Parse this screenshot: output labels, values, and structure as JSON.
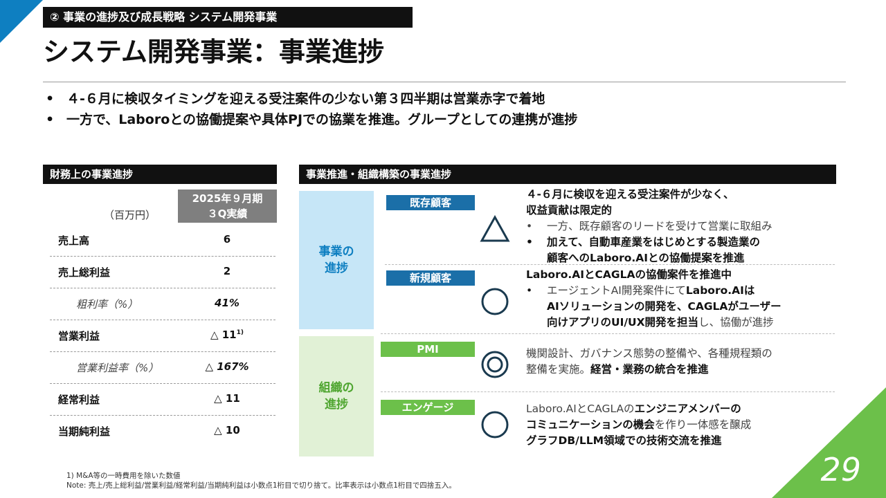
{
  "header": {
    "section": "② 事業の進捗及び成長戦略 システム開発事業",
    "title": "システム開発事業：事業進捗"
  },
  "summary_bullets": [
    "４-６月に検収タイミングを迎える受注案件の少ない第３四半期は営業赤字で着地",
    "一方で、Laboroとの協働提案や具体PJでの協業を推進。グループとしての連携が進捗"
  ],
  "financial": {
    "header": "財務上の事業進捗",
    "unit": "（百万円）",
    "column_header_line1": "2025年９月期",
    "column_header_line2": "３Q実績",
    "rows": [
      {
        "label": "売上高",
        "value": "6"
      },
      {
        "label": "売上総利益",
        "value": "2"
      },
      {
        "label": "粗利率（%）",
        "value": "41%"
      },
      {
        "label": "営業利益",
        "value": "△ 11",
        "note": "1)"
      },
      {
        "label": "営業利益率（%）",
        "value": "△ 167%"
      },
      {
        "label": "経常利益",
        "value": "△ 11"
      },
      {
        "label": "当期純利益",
        "value": "△ 10"
      }
    ]
  },
  "business": {
    "header": "事業推進・組織構築の事業進捗",
    "band1_line1": "事業の",
    "band1_line2": "進捗",
    "band2_line1": "組織の",
    "band2_line2": "進捗",
    "items": [
      {
        "tag": "既存顧客",
        "symbol": "triangle",
        "lines": [
          "４-６月に検収を迎える受注案件が少なく、",
          "収益貢献は限定的",
          "一方、既存顧客のリードを受けて営業に取組み",
          "加えて、自動車産業をはじめとする製造業の",
          "顧客へのLaboro.AIとの協働提案を推進"
        ]
      },
      {
        "tag": "新規顧客",
        "symbol": "circle",
        "lines": [
          "Laboro.AIとCAGLAの協働案件を推進中",
          "エージェントAI開発案件にて",
          "Laboro.AIは",
          "AIソリューションの開発を、CAGLAがユーザー",
          "向けアプリのUI/UX開発を担当",
          "し、協働が進捗"
        ]
      },
      {
        "tag": "PMI",
        "symbol": "double-circle",
        "lines": [
          "機関設計、ガバナンス態勢の整備や、各種規程類の",
          "整備を実施。",
          "経営・業務の統合を推進"
        ]
      },
      {
        "tag": "エンゲージ",
        "symbol": "circle",
        "lines": [
          "Laboro.AIとCAGLAの",
          "エンジニアメンバーの",
          "コミュニケーションの機会",
          "を作り一体感を醸成",
          "グラフDB/LLM領域での技術交流を推進"
        ]
      }
    ]
  },
  "bullet_char": "•",
  "notes": [
    "1) M&A等の一時費用を除いた数値",
    "Note: 売上/売上総利益/営業利益/経常利益/当期純利益は小数点1桁目で切り捨て。比率表示は小数点1桁目で四捨五入。"
  ],
  "page_number": "29",
  "colors": {
    "accent_blue": "#0e7fc1",
    "accent_green": "#6cc04a",
    "band_blue": "#c6e6f7",
    "band_green": "#e1f1d6",
    "symbol": "#1a3a4f"
  }
}
